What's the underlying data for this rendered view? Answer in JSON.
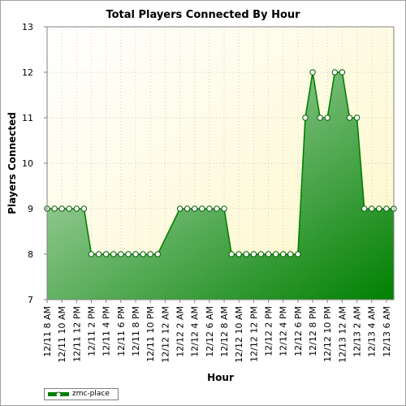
{
  "chart_data": {
    "type": "area",
    "title": "Total Players Connected By Hour",
    "xlabel": "Hour",
    "ylabel": "Players Connected",
    "ylim": [
      7,
      13
    ],
    "yticks": [
      7,
      8,
      9,
      10,
      11,
      12,
      13
    ],
    "grid": true,
    "legend_position": "bottom-left",
    "xtick_labels": [
      "12/11 8 AM",
      "12/11 10 AM",
      "12/11 12 PM",
      "12/11 2 PM",
      "12/11 4 PM",
      "12/11 6 PM",
      "12/11 8 PM",
      "12/11 10 PM",
      "12/12 12 AM",
      "12/12 2 AM",
      "12/12 4 AM",
      "12/12 6 AM",
      "12/12 8 AM",
      "12/12 10 AM",
      "12/12 12 PM",
      "12/12 2 PM",
      "12/12 4 PM",
      "12/12 6 PM",
      "12/12 8 PM",
      "12/12 10 PM",
      "12/13 12 AM",
      "12/13 2 AM",
      "12/13 4 AM",
      "12/13 6 AM"
    ],
    "series": [
      {
        "name": "zmc-place",
        "color": "#008000",
        "points": [
          [
            "12/11 8 AM",
            9
          ],
          [
            "12/11 9 AM",
            9
          ],
          [
            "12/11 10 AM",
            9
          ],
          [
            "12/11 11 AM",
            9
          ],
          [
            "12/11 12 PM",
            9
          ],
          [
            "12/11 1 PM",
            9
          ],
          [
            "12/11 2 PM",
            8
          ],
          [
            "12/11 3 PM",
            8
          ],
          [
            "12/11 4 PM",
            8
          ],
          [
            "12/11 5 PM",
            8
          ],
          [
            "12/11 6 PM",
            8
          ],
          [
            "12/11 7 PM",
            8
          ],
          [
            "12/11 8 PM",
            8
          ],
          [
            "12/11 9 PM",
            8
          ],
          [
            "12/11 10 PM",
            8
          ],
          [
            "12/11 11 PM",
            8
          ],
          [
            "12/12 2 AM",
            9
          ],
          [
            "12/12 3 AM",
            9
          ],
          [
            "12/12 4 AM",
            9
          ],
          [
            "12/12 5 AM",
            9
          ],
          [
            "12/12 6 AM",
            9
          ],
          [
            "12/12 7 AM",
            9
          ],
          [
            "12/12 8 AM",
            9
          ],
          [
            "12/12 9 AM",
            8
          ],
          [
            "12/12 10 AM",
            8
          ],
          [
            "12/12 11 AM",
            8
          ],
          [
            "12/12 12 PM",
            8
          ],
          [
            "12/12 1 PM",
            8
          ],
          [
            "12/12 2 PM",
            8
          ],
          [
            "12/12 3 PM",
            8
          ],
          [
            "12/12 4 PM",
            8
          ],
          [
            "12/12 5 PM",
            8
          ],
          [
            "12/12 6 PM",
            8
          ],
          [
            "12/12 7 PM",
            11
          ],
          [
            "12/12 8 PM",
            12
          ],
          [
            "12/12 9 PM",
            11
          ],
          [
            "12/12 10 PM",
            11
          ],
          [
            "12/12 11 PM",
            12
          ],
          [
            "12/13 12 AM",
            12
          ],
          [
            "12/13 1 AM",
            11
          ],
          [
            "12/13 2 AM",
            11
          ],
          [
            "12/13 3 AM",
            9
          ],
          [
            "12/13 4 AM",
            9
          ],
          [
            "12/13 5 AM",
            9
          ],
          [
            "12/13 6 AM",
            9
          ],
          [
            "12/13 7 AM",
            9
          ]
        ]
      }
    ]
  }
}
